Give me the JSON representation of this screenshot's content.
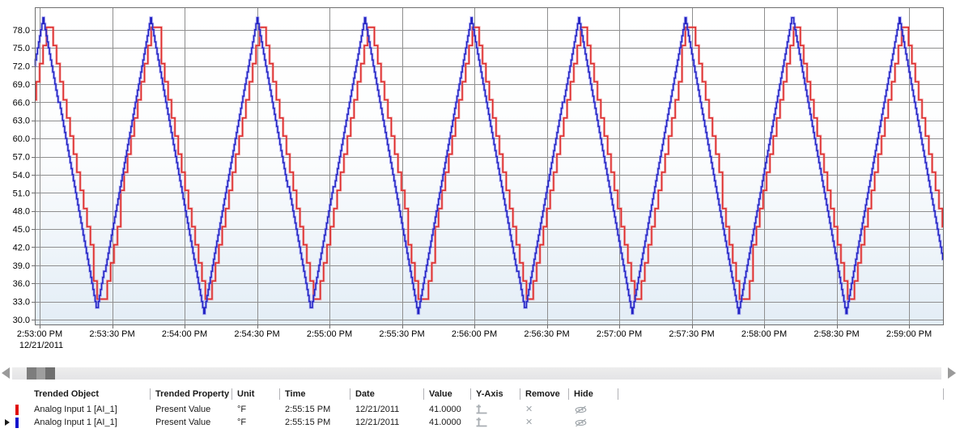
{
  "chart_data": {
    "type": "line",
    "title": "",
    "legend_position": "table-below",
    "grid": true,
    "x_axis": {
      "tick_labels": [
        "2:53:00 PM",
        "2:53:30 PM",
        "2:54:00 PM",
        "2:54:30 PM",
        "2:55:00 PM",
        "2:55:30 PM",
        "2:56:00 PM",
        "2:56:30 PM",
        "2:57:00 PM",
        "2:57:30 PM",
        "2:58:00 PM",
        "2:58:30 PM",
        "2:59:00 PM"
      ],
      "date_label": "12/21/2011",
      "interval_seconds": 30,
      "visible_seconds": 374.4
    },
    "y_axis": {
      "tick_labels": [
        "78.0",
        "75.0",
        "72.0",
        "69.0",
        "66.0",
        "63.0",
        "60.0",
        "57.0",
        "54.0",
        "51.0",
        "48.0",
        "45.0",
        "42.0",
        "39.0",
        "36.0",
        "33.0",
        "30.0"
      ],
      "tick_min": 30,
      "tick_max": 78,
      "tick_step": 3,
      "domain_min": 29.1,
      "domain_max": 81.6
    },
    "series": [
      {
        "name": "Analog Input 1 [AI_1]",
        "property": "Present Value",
        "unit": "°F",
        "shape": "stepped-triangle-wave",
        "color": "#dd2c2c",
        "halo": "rgba(238,105,105,0.5)",
        "period_s": 44.31,
        "peak_time_s": 1.5,
        "value_max": 80.1,
        "value_min": 31.1,
        "sample_interval_s": 1.4,
        "lag_s": 1.6,
        "quantize": 3,
        "offset": 0.4,
        "clamp_min": 33.4,
        "clamp_max": 78.4
      },
      {
        "name": "Analog Input 1 [AI_1]",
        "property": "Present Value",
        "unit": "°F",
        "shape": "stepped-triangle-wave",
        "color": "#2424c4",
        "halo": "rgba(112,112,238,0.5)",
        "period_s": 44.31,
        "peak_time_s": 1.5,
        "value_max": 80.1,
        "value_min": 31.1,
        "sample_interval_s": 0.45,
        "lag_s": 0,
        "quantize": 1,
        "offset": 0,
        "clamp_min": 31,
        "clamp_max": 80.1
      }
    ],
    "colors": {
      "gridline": "#8f8f8f",
      "border": "#6e6e6e",
      "plot_bg_top": "#ffffff",
      "plot_bg_bottom": "#e3edf6"
    }
  },
  "scrollbar": {
    "thumb_left": 18,
    "thumb_width": 35
  },
  "table": {
    "headers": {
      "trended_object": "Trended Object",
      "trended_property": "Trended Property",
      "unit": "Unit",
      "time": "Time",
      "date": "Date",
      "value": "Value",
      "y_axis": "Y-Axis",
      "remove": "Remove",
      "hide": "Hide"
    },
    "row_icons": [
      "y-axis-icon",
      "remove-icon",
      "hide-icon"
    ],
    "rows": [
      {
        "color": "#e01010",
        "selected": false,
        "trended_object": "Analog Input 1 [AI_1]",
        "trended_property": "Present Value",
        "unit": "°F",
        "time": "2:55:15 PM",
        "date": "12/21/2011",
        "value": "41.0000"
      },
      {
        "color": "#1414cc",
        "selected": true,
        "trended_object": "Analog Input 1 [AI_1]",
        "trended_property": "Present Value",
        "unit": "°F",
        "time": "2:55:15 PM",
        "date": "12/21/2011",
        "value": "41.0000"
      }
    ]
  }
}
